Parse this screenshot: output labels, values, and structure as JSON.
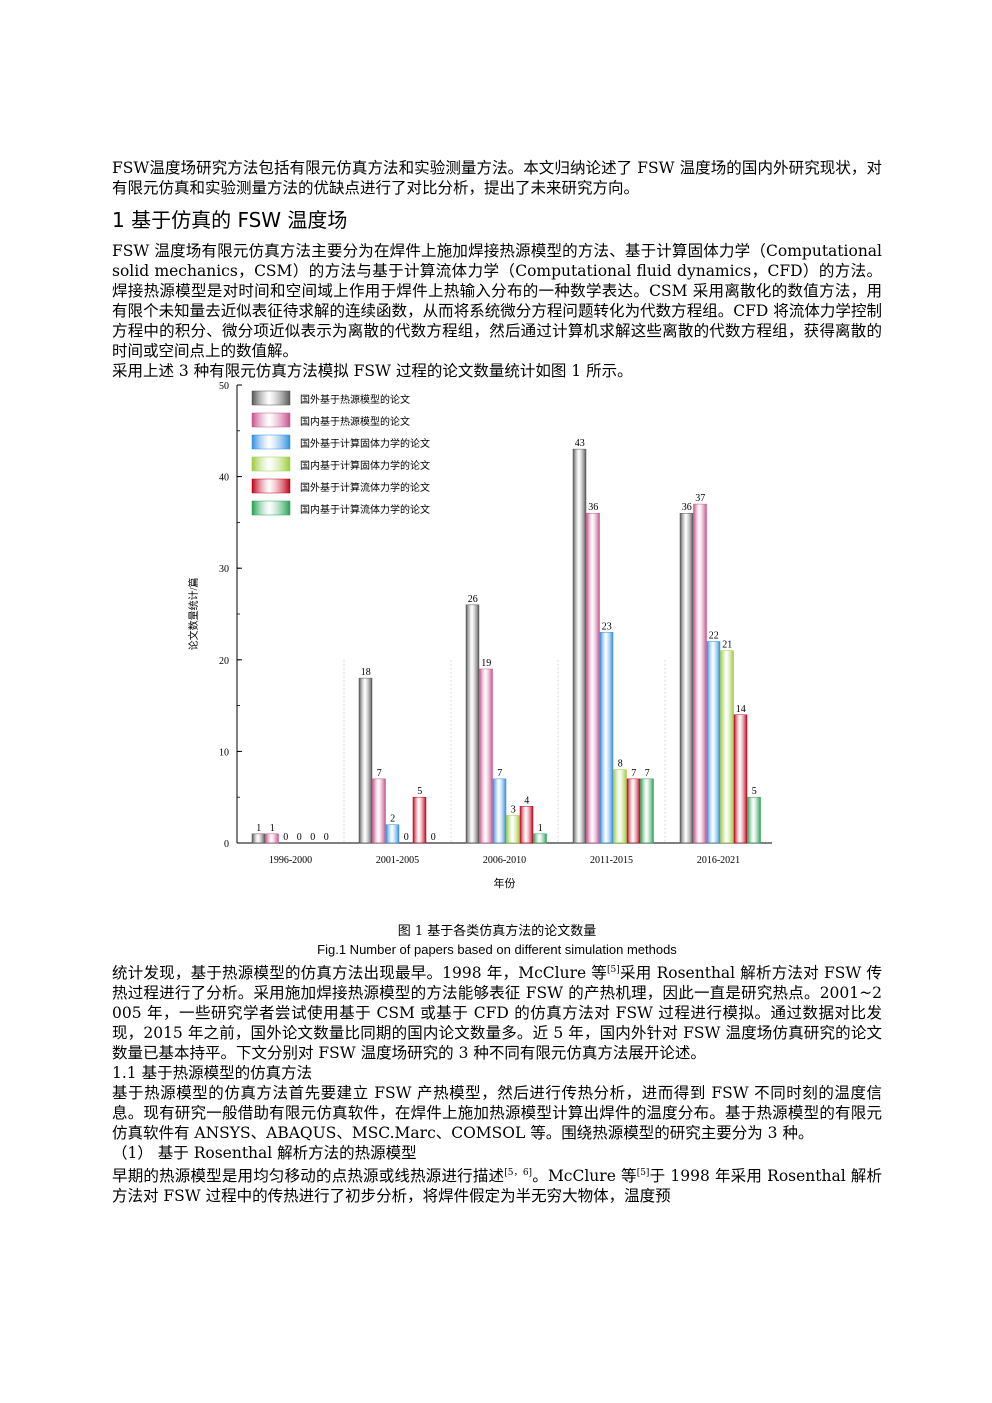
{
  "paragraphs": {
    "intro": "FSW温度场研究方法包括有限元仿真方法和实验测量方法。本文归纳论述了 FSW 温度场的国内外研究现状，对有限元仿真和实验测量方法的优缺点进行了对比分析，提出了未来研究方向。",
    "section1_title": "1  基于仿真的 FSW 温度场",
    "s1_p1": "FSW 温度场有限元仿真方法主要分为在焊件上施加焊接热源模型的方法、基于计算固体力学（Computational solid mechanics，CSM）的方法与基于计算流体力学（Computational fluid dynamics，CFD）的方法。焊接热源模型是对时间和空间域上作用于焊件上热输入分布的一种数学表达。CSM 采用离散化的数值方法，用有限个未知量去近似表征待求解的连续函数，从而将系统微分方程问题转化为代数方程组。CFD 将流体力学控制方程中的积分、微分项近似表示为离散的代数方程组，然后通过计算机求解这些离散的代数方程组，获得离散的时间或空间点上的数值解。",
    "s1_p2": "采用上述 3 种有限元仿真方法模拟 FSW 过程的论文数量统计如图 1 所示。",
    "fig_caption_cn": "图 1  基于各类仿真方法的论文数量",
    "fig_caption_en": "Fig.1    Number of papers based on different simulation methods",
    "s1_p3_a": "统计发现，基于热源模型的仿真方法出现最早。1998 年，McClure 等",
    "s1_p3_ref": "[5]",
    "s1_p3_b": "采用 Rosenthal 解析方法对 FSW 传热过程进行了分析。采用施加焊接热源模型的方法能够表征 FSW 的产热机理，因此一直是研究热点。2001~2005 年，一些研究学者尝试使用基于 CSM 或基于 CFD 的仿真方法对 FSW 过程进行模拟。通过数据对比发现，2015 年之前，国外论文数量比同期的国内论文数量多。近 5 年，国内外针对 FSW 温度场仿真研究的论文数量已基本持平。下文分别对 FSW 温度场研究的 3 种不同有限元仿真方法展开论述。",
    "section11_title": "1.1    基于热源模型的仿真方法",
    "s11_p1": "基于热源模型的仿真方法首先要建立 FSW 产热模型，然后进行传热分析，进而得到 FSW 不同时刻的温度信息。现有研究一般借助有限元仿真软件，在焊件上施加热源模型计算出焊件的温度分布。基于热源模型的有限元仿真软件有 ANSYS、ABAQUS、MSC.Marc、COMSOL 等。围绕热源模型的研究主要分为 3 种。",
    "sub1_title": "（1）  基于 Rosenthal 解析方法的热源模型",
    "sub1_p_a": "早期的热源模型是用均匀移动的点热源或线热源进行描述",
    "sub1_ref1": "[5，6]",
    "sub1_p_b": "。McClure 等",
    "sub1_ref2": "[5]",
    "sub1_p_c": "于 1998 年采用 Rosenthal 解析方法对 FSW 过程中的传热进行了初步分析，将焊件假定为半无穷大物体，温度预"
  },
  "chart_data": {
    "type": "bar",
    "categories": [
      "1996-2000",
      "2001-2005",
      "2006-2010",
      "2011-2015",
      "2016-2021"
    ],
    "series": [
      {
        "name": "国外基于热源模型的论文",
        "color": "#555555",
        "values": [
          1,
          18,
          26,
          43,
          36
        ]
      },
      {
        "name": "国内基于热源模型的论文",
        "color": "#c8508a",
        "values": [
          1,
          7,
          19,
          36,
          37
        ]
      },
      {
        "name": "国外基于计算固体力学的论文",
        "color": "#2f8fe0",
        "values": [
          0,
          2,
          7,
          23,
          22
        ]
      },
      {
        "name": "国内基于计算固体力学的论文",
        "color": "#9ccc3c",
        "values": [
          0,
          0,
          3,
          8,
          21
        ]
      },
      {
        "name": "国外基于计算流体力学的论文",
        "color": "#c0001a",
        "values": [
          0,
          5,
          4,
          7,
          14
        ]
      },
      {
        "name": "国内基于计算流体力学的论文",
        "color": "#27a055",
        "values": [
          0,
          0,
          1,
          7,
          5
        ]
      }
    ],
    "xlabel": "年份",
    "ylabel": "论文数量统计/篇",
    "ylim": [
      0,
      50
    ],
    "yticks": [
      0,
      10,
      20,
      30,
      40,
      50
    ],
    "legend_position": "top-left"
  }
}
